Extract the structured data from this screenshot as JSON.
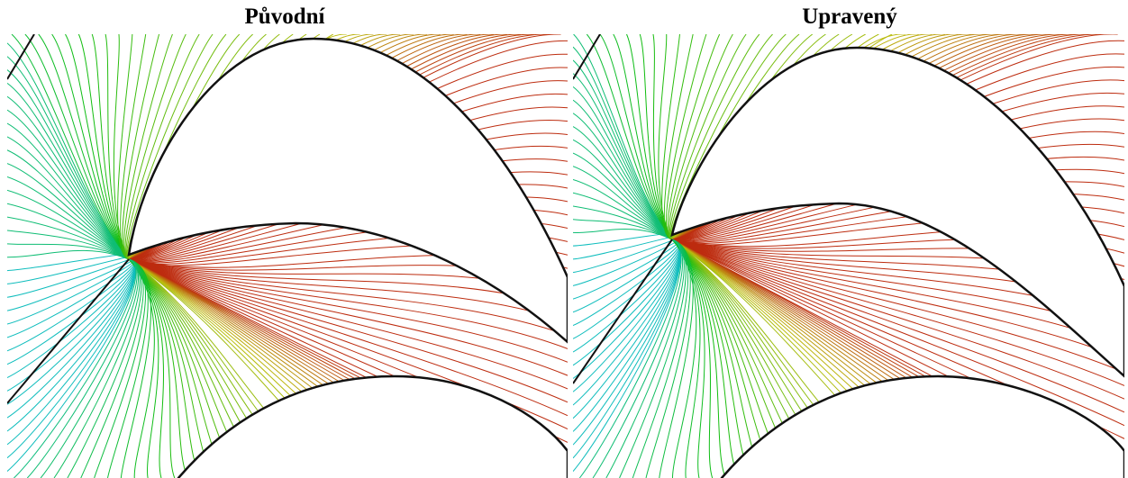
{
  "panels": [
    {
      "title": "Původní"
    },
    {
      "title": "Upravený"
    }
  ]
}
